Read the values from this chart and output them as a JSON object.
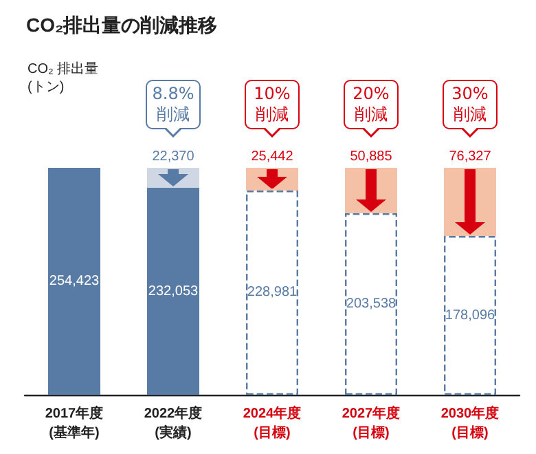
{
  "chart_data": {
    "type": "bar",
    "title": "CO₂排出量の削減推移",
    "stacked": true,
    "categories": [
      "2017年度\n(基準年)",
      "2022年度\n(実績)",
      "2024年度\n(目標)",
      "2027年度\n(目標)",
      "2030年度\n(目標)"
    ],
    "series": [
      {
        "color": "#587ba6",
        "values": [
          254423,
          232053,
          null,
          null,
          null
        ],
        "value_labels": [
          "254,423",
          "232,053",
          null,
          null,
          null
        ]
      },
      {
        "color": "#587ba6",
        "line_style": "dashed",
        "values": [
          null,
          null,
          228981,
          203538,
          178096
        ],
        "value_labels": [
          null,
          null,
          "228,981",
          "203,538",
          "178,096"
        ]
      },
      {
        "colors": [
          null,
          "#cfd6e4",
          "#f5c1a6",
          "#f5c1a6",
          "#f5c1a6"
        ],
        "values": [
          null,
          22370,
          25442,
          50885,
          76327
        ],
        "value_labels": [
          null,
          "22,370",
          "25,442",
          "50,885",
          "76,327"
        ]
      }
    ],
    "annotations": [
      "CO₂ 排出量\n(トン)",
      {
        "text": "8.8%\n削減",
        "x": "2022年度\n(実績)",
        "y": 254423
      },
      {
        "text": "10%\n削減",
        "x": "2024年度\n(目標)",
        "y": 254423
      },
      {
        "text": "20%\n削減",
        "x": "2027年度\n(目標)",
        "y": 254423
      },
      {
        "text": "30%\n削減",
        "x": "2030年度\n(目標)",
        "y": 254423
      }
    ]
  }
}
